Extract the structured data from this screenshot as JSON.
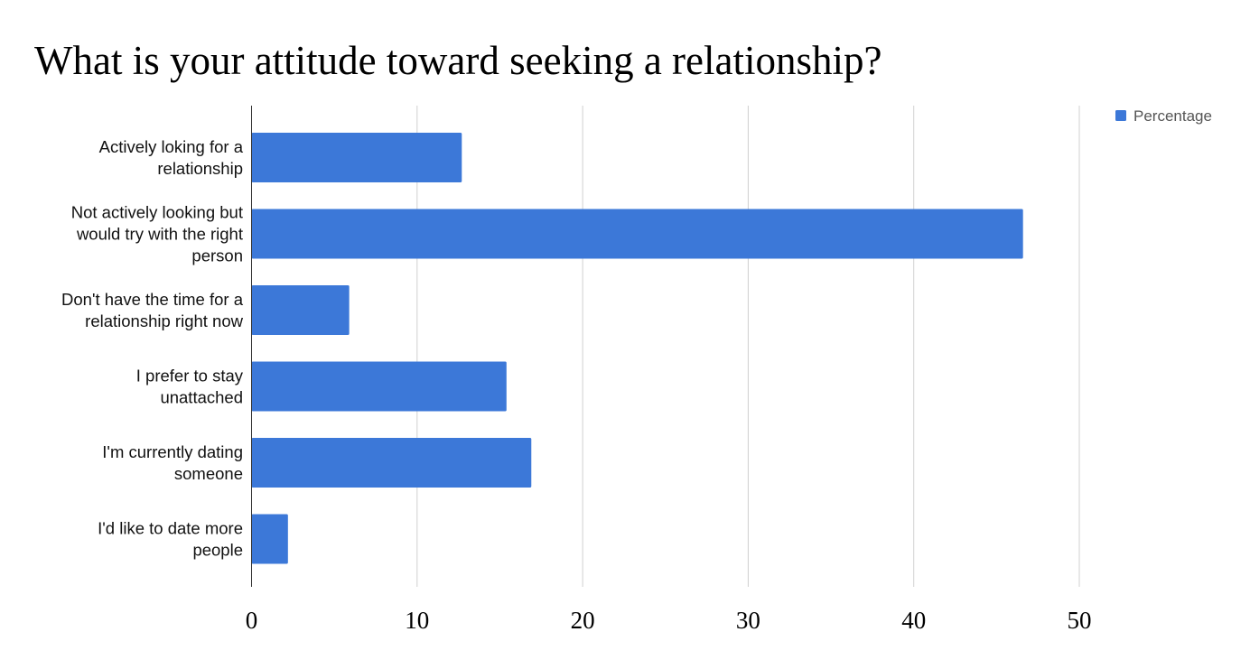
{
  "chart_data": {
    "type": "bar",
    "orientation": "horizontal",
    "title": "What is your attitude toward seeking a relationship?",
    "categories": [
      [
        "Actively loking for a",
        "relationship"
      ],
      [
        "Not actively looking but",
        "would try with the right",
        "person"
      ],
      [
        "Don't have the time for a",
        "relationship right now"
      ],
      [
        "I prefer to stay",
        "unattached"
      ],
      [
        "I'm currently dating",
        "someone"
      ],
      [
        "I'd like to date more",
        "people"
      ]
    ],
    "series": [
      {
        "name": "Percentage",
        "color": "#3c78d8",
        "values": [
          12.7,
          46.6,
          5.9,
          15.4,
          16.9,
          2.2
        ]
      }
    ],
    "xlim": [
      0,
      50
    ],
    "xticks": [
      0,
      10,
      20,
      30,
      40,
      50
    ],
    "xlabel": "",
    "ylabel": "",
    "grid": true,
    "legend_position": "top-right"
  }
}
